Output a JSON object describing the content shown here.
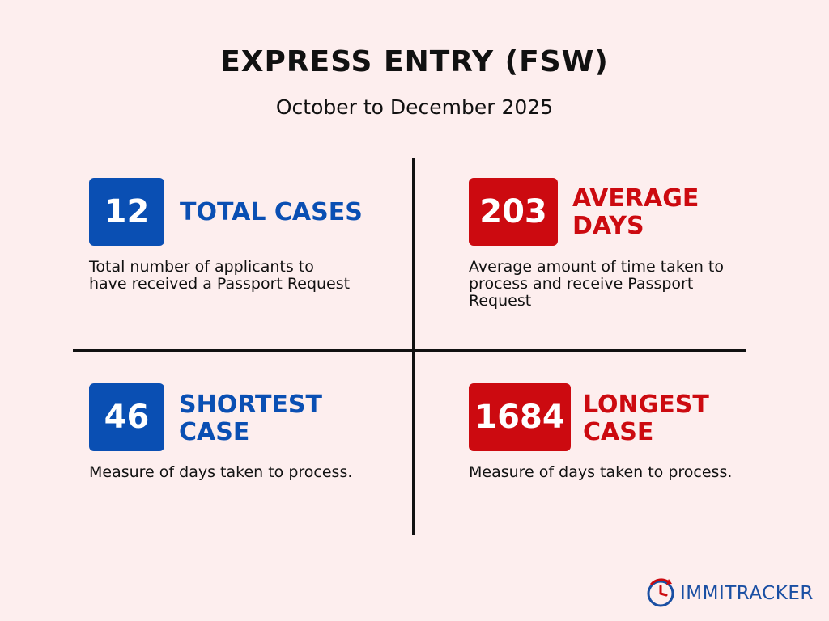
{
  "header": {
    "title": "EXPRESS ENTRY (FSW)",
    "subtitle": "October to December 2025"
  },
  "colors": {
    "background": "#fdeeee",
    "blue": "#0a4fb3",
    "red": "#cc0a10",
    "divider": "#111111"
  },
  "stats": {
    "total_cases": {
      "value": "12",
      "label_line1": "TOTAL CASES",
      "label_line2": "",
      "description": "Total number of applicants to have received a Passport Request"
    },
    "average_days": {
      "value": "203",
      "label_line1": "AVERAGE",
      "label_line2": "DAYS",
      "description": "Average amount of time taken to process and receive Passport Request"
    },
    "shortest_case": {
      "value": "46",
      "label_line1": "SHORTEST",
      "label_line2": "CASE",
      "description": "Measure of days taken to process."
    },
    "longest_case": {
      "value": "1684",
      "label_line1": "LONGEST",
      "label_line2": "CASE",
      "description": "Measure of days taken to process."
    }
  },
  "logo": {
    "icon": "clock-arrow-icon",
    "text": "IMMITRACKER"
  }
}
